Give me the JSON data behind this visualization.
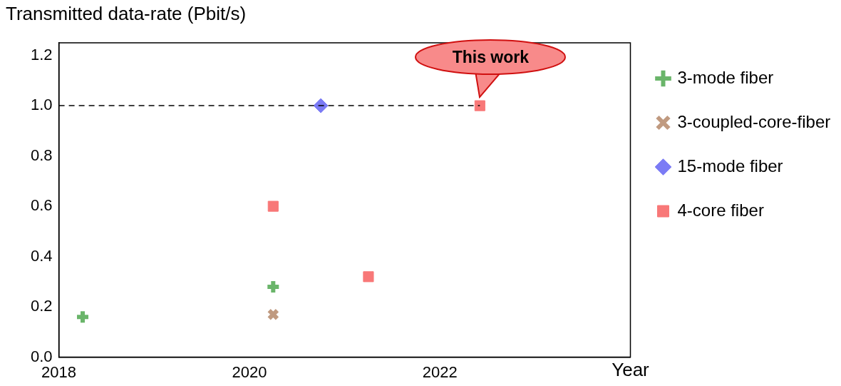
{
  "chart_data": {
    "type": "scatter",
    "ylabel": "Transmitted data-rate (Pbit/s)",
    "xlabel": "Year",
    "xlim": [
      2018,
      2024
    ],
    "xticks": [
      2018,
      2020,
      2022
    ],
    "ylim": [
      0,
      1.25
    ],
    "yticks": [
      {
        "value": 0,
        "label": "0.0"
      },
      {
        "value": 0.2,
        "label": "0.2"
      },
      {
        "value": 0.4,
        "label": "0.4"
      },
      {
        "value": 0.6,
        "label": "0.6"
      },
      {
        "value": 0.8,
        "label": "0.8"
      },
      {
        "value": 1,
        "label": "1.0"
      },
      {
        "value": 1.2,
        "label": "1.2"
      }
    ],
    "grid": false,
    "legend": "right",
    "series": [
      {
        "type": "line",
        "color": "#000000",
        "line_style": "dashed",
        "marker": "none",
        "x": [
          2018,
          2022.42
        ],
        "values": [
          1,
          1
        ]
      },
      {
        "name": "3-mode fiber",
        "color": "#6ab56a",
        "marker": "cross",
        "x": [
          2018.25,
          2020.25
        ],
        "values": [
          0.16,
          0.28
        ]
      },
      {
        "name": "3-coupled-core-fiber",
        "color": "#c09a80",
        "marker": "x",
        "x": [
          2020.25
        ],
        "values": [
          0.17
        ]
      },
      {
        "name": "15-mode fiber",
        "color": "#7b7bf5",
        "marker": "diamond",
        "x": [
          2020.75
        ],
        "values": [
          1.0
        ]
      },
      {
        "name": "4-core fiber",
        "color": "#f87878",
        "marker": "square",
        "x": [
          2020.25,
          2021.25,
          2022.42
        ],
        "values": [
          0.6,
          0.32,
          1.0
        ]
      }
    ],
    "annotations": [
      {
        "text": "This work",
        "x": 2022.42,
        "y": 1.0
      }
    ]
  }
}
